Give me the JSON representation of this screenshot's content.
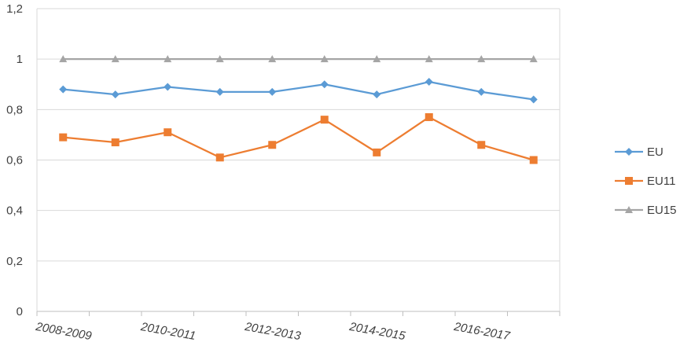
{
  "chart_data": {
    "type": "line",
    "categories": [
      "2008-2009",
      "2009-2010",
      "2010-2011",
      "2011-2012",
      "2012-2013",
      "2013-2014",
      "2014-2015",
      "2015-2016",
      "2016-2017",
      "2017-2018"
    ],
    "x_tick_labels": [
      "2008-2009",
      "2010-2011",
      "2012-2013",
      "2014-2015",
      "2016-2017"
    ],
    "y_tick_labels": [
      "0",
      "0,2",
      "0,4",
      "0,6",
      "0,8",
      "1",
      "1,2"
    ],
    "ylim": [
      0,
      1.2
    ],
    "grid": true,
    "legend_position": "right",
    "series": [
      {
        "name": "EU",
        "color": "#5b9bd5",
        "marker": "diamond",
        "values": [
          0.88,
          0.86,
          0.89,
          0.87,
          0.87,
          0.9,
          0.86,
          0.91,
          0.87,
          0.84
        ]
      },
      {
        "name": "EU11",
        "color": "#ed7d31",
        "marker": "square",
        "values": [
          0.69,
          0.67,
          0.71,
          0.61,
          0.66,
          0.76,
          0.63,
          0.77,
          0.66,
          0.6
        ]
      },
      {
        "name": "EU15",
        "color": "#a5a5a5",
        "marker": "triangle",
        "values": [
          1.0,
          1.0,
          1.0,
          1.0,
          1.0,
          1.0,
          1.0,
          1.0,
          1.0,
          1.0
        ]
      }
    ]
  }
}
